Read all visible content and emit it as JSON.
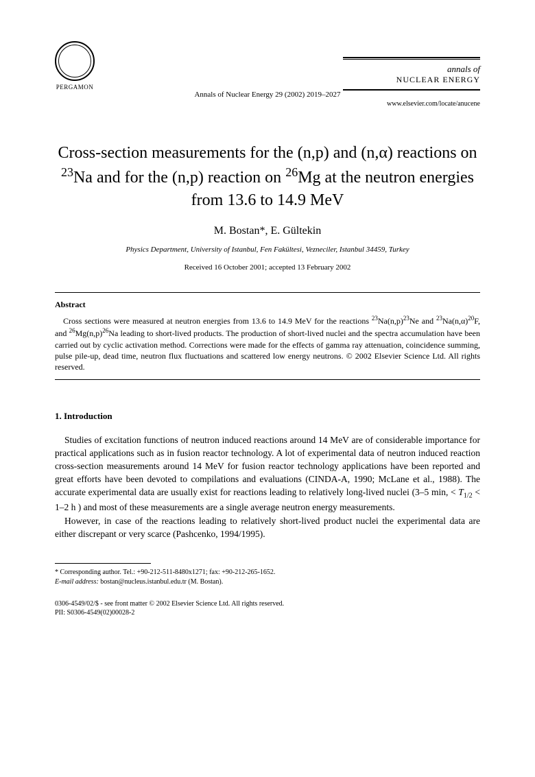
{
  "header": {
    "publisher": "PERGAMON",
    "citation": "Annals of Nuclear Energy 29 (2002) 2019–2027",
    "url": "www.elsevier.com/locate/anucene",
    "journal_line1": "annals of",
    "journal_line2": "NUCLEAR ENERGY"
  },
  "title_html": "Cross-section measurements for the (n,p) and (n,α) reactions on <sup>23</sup>Na and for the (n,p) reaction on <sup>26</sup>Mg at the neutron energies from 13.6 to 14.9 MeV",
  "authors": "M. Bostan*, E. Gültekin",
  "affiliation": "Physics Department, University of Istanbul, Fen Fakültesi, Vezneciler, Istanbul 34459, Turkey",
  "dates": "Received 16 October 2001; accepted 13 February 2002",
  "abstract": {
    "heading": "Abstract",
    "text_html": "Cross sections were measured at neutron energies from 13.6 to 14.9 MeV for the reactions <sup>23</sup>Na(n,p)<sup>23</sup>Ne and <sup>23</sup>Na(n,α)<sup>20</sup>F, and <sup>26</sup>Mg(n,p)<sup>26</sup>Na leading to short-lived products. The production of short-lived nuclei and the spectra accumulation have been carried out by cyclic activation method. Corrections were made for the effects of gamma ray attenuation, coincidence summing, pulse pile-up, dead time, neutron flux fluctuations and scattered low energy neutrons. © 2002 Elsevier Science Ltd. All rights reserved."
  },
  "section1": {
    "heading": "1.  Introduction",
    "para1_html": "Studies of excitation functions of neutron induced reactions around 14 MeV are of considerable importance for practical applications such as in fusion reactor technology. A lot of experimental data of neutron induced reaction cross-section measurements around 14 MeV for fusion reactor technology applications have been reported and great efforts have been devoted to compilations and evaluations (CINDA-A, 1990; McLane et al., 1988). The accurate experimental data are usually exist for reactions leading to relatively long-lived nuclei (3–5 min, < <i>T</i><sub>1/2</sub> < 1–2 h ) and most of these measurements are a single average neutron energy measurements.",
    "para2": "However, in case of the reactions leading to relatively short-lived product nuclei the experimental data are either discrepant or very scarce (Pashcenko, 1994/1995)."
  },
  "footnote": {
    "corr": "* Corresponding author. Tel.: +90-212-511-8480x1271; fax: +90-212-265-1652.",
    "email_label": "E-mail address:",
    "email_value": " bostan@nucleus.istanbul.edu.tr (M. Bostan)."
  },
  "footer": {
    "line1": "0306-4549/02/$ - see front matter © 2002 Elsevier Science Ltd. All rights reserved.",
    "line2": "PII: S0306-4549(02)00028-2"
  }
}
